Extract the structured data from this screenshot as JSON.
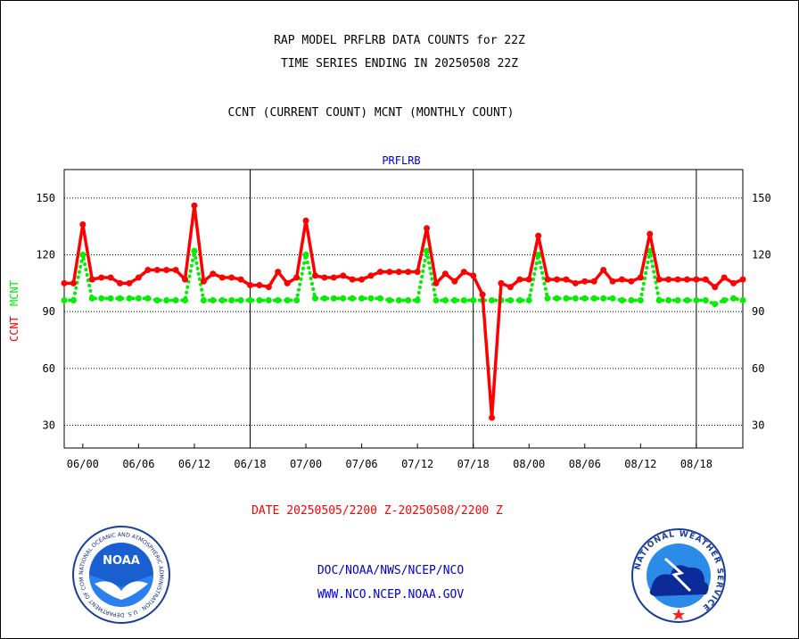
{
  "header": {
    "title_line1": "RAP MODEL PRFLRB DATA COUNTS for 22Z",
    "title_line2": "TIME SERIES ENDING IN 20250508 22Z",
    "subtitle": "CCNT (CURRENT COUNT) MCNT (MONTHLY COUNT)"
  },
  "chart_data": {
    "type": "line",
    "title": "PRFLRB",
    "ylabel_ccnt": "CCNT",
    "ylabel_mcnt": "MCNT",
    "x_tick_labels": [
      "06/00",
      "06/06",
      "06/12",
      "06/18",
      "07/00",
      "07/06",
      "07/12",
      "07/18",
      "08/00",
      "08/06",
      "08/12",
      "08/18"
    ],
    "y_ticks": [
      30,
      60,
      90,
      120,
      150
    ],
    "ylim": [
      18,
      165
    ],
    "grid": "horizontal dotted",
    "series": [
      {
        "name": "CCNT",
        "color": "#ff0000",
        "style": "solid",
        "values": [
          105,
          105,
          136,
          107,
          108,
          108,
          105,
          105,
          108,
          112,
          112,
          112,
          112,
          107,
          146,
          106,
          110,
          108,
          108,
          107,
          104,
          104,
          103,
          111,
          105,
          108,
          138,
          109,
          108,
          108,
          109,
          107,
          107,
          109,
          111,
          111,
          111,
          111,
          111,
          134,
          105,
          110,
          106,
          111,
          109,
          99,
          34,
          105,
          103,
          107,
          107,
          130,
          107,
          107,
          107,
          105,
          106,
          106,
          112,
          106,
          107,
          106,
          108,
          131,
          107,
          107,
          107,
          107,
          107,
          107,
          103,
          108,
          105,
          107
        ]
      },
      {
        "name": "MCNT",
        "color": "#00ee00",
        "style": "dotted",
        "values": [
          96,
          96,
          120,
          97,
          97,
          97,
          97,
          97,
          97,
          97,
          96,
          96,
          96,
          96,
          122,
          96,
          96,
          96,
          96,
          96,
          96,
          96,
          96,
          96,
          96,
          96,
          120,
          97,
          97,
          97,
          97,
          97,
          97,
          97,
          97,
          96,
          96,
          96,
          96,
          122,
          96,
          96,
          96,
          96,
          96,
          96,
          96,
          96,
          96,
          96,
          96,
          120,
          97,
          97,
          97,
          97,
          97,
          97,
          97,
          97,
          96,
          96,
          96,
          122,
          96,
          96,
          96,
          96,
          96,
          96,
          94,
          96,
          97,
          96
        ]
      }
    ]
  },
  "footer": {
    "date_range": "DATE 20250505/2200 Z-20250508/2200 Z",
    "credit_line1": "DOC/NOAA/NWS/NCEP/NCO",
    "credit_line2": "WWW.NCO.NCEP.NOAA.GOV",
    "noaa_logo_text": "NOAA",
    "noaa_ring_text": "NATIONAL OCEANIC AND ATMOSPHERIC ADMINISTRATION · U.S. DEPARTMENT OF COMMERCE ·",
    "nws_ring_text": "NATIONAL WEATHER SERVICE"
  },
  "colors": {
    "title": "#000000",
    "chart_title": "#0000cc",
    "ccnt": "#ff0000",
    "mcnt": "#00ee00",
    "date_range": "#ff0000",
    "credit": "#0000cc"
  }
}
